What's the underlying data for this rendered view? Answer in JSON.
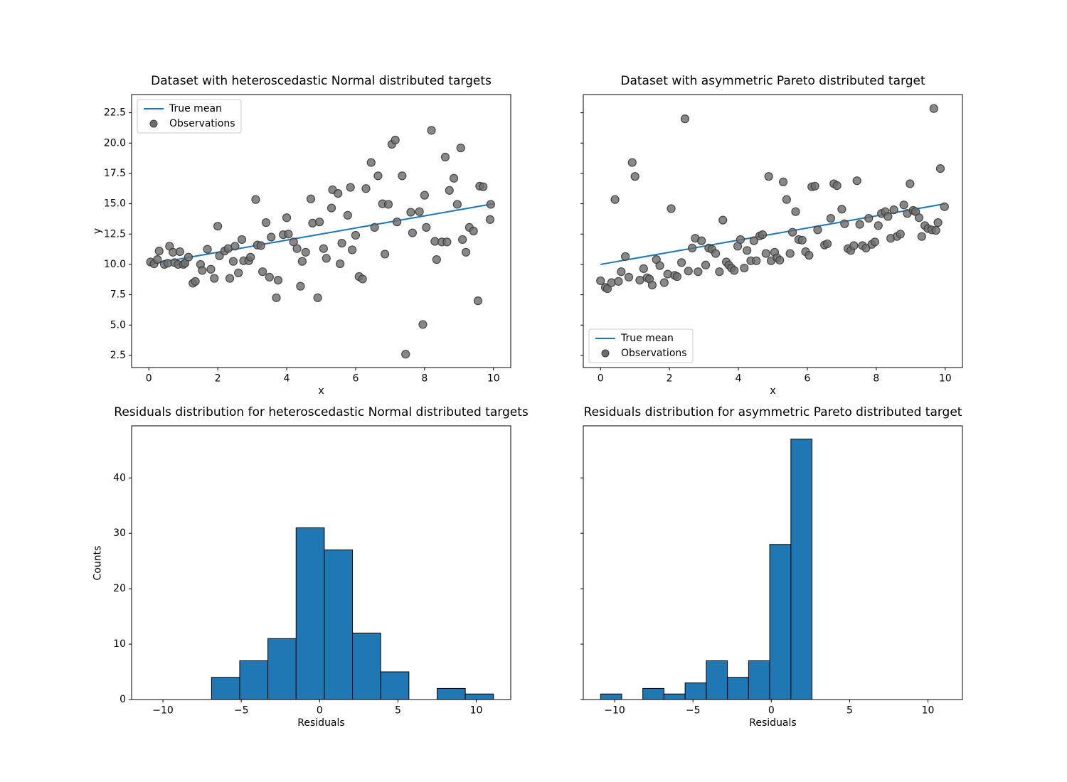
{
  "figure": {
    "background": "#ffffff"
  },
  "colors": {
    "line": "#1f77b4",
    "hist_fill": "#1f77b4",
    "hist_edge": "#000000",
    "marker_fill": "#6e6e6e",
    "marker_edge": "#3a3a3a",
    "axes_edge": "#000000",
    "legend_border": "#cccccc",
    "legend_bg": "#ffffff"
  },
  "chart_data": [
    {
      "type": "scatter",
      "title": "Dataset with heteroscedastic Normal distributed targets",
      "xlabel": "x",
      "ylabel": "y",
      "xlim": [
        -0.5,
        10.5
      ],
      "ylim": [
        1.5,
        24.0
      ],
      "xticks": [
        0,
        2,
        4,
        6,
        8,
        10
      ],
      "xtick_labels": [
        "0",
        "2",
        "4",
        "6",
        "8",
        "10"
      ],
      "yticks": [
        2.5,
        5.0,
        7.5,
        10.0,
        12.5,
        15.0,
        17.5,
        20.0,
        22.5
      ],
      "ytick_labels": [
        "2.5",
        "5.0",
        "7.5",
        "10.0",
        "12.5",
        "15.0",
        "17.5",
        "20.0",
        "22.5"
      ],
      "show_ytick_labels": true,
      "line": {
        "label": "True mean",
        "x": [
          0,
          10
        ],
        "y": [
          10,
          15
        ]
      },
      "legend": {
        "position": "upper-left",
        "items": [
          "True mean",
          "Observations"
        ]
      },
      "points": [
        [
          0.05,
          10.2
        ],
        [
          0.15,
          10.05
        ],
        [
          0.25,
          10.4
        ],
        [
          0.3,
          11.1
        ],
        [
          0.45,
          10.0
        ],
        [
          0.55,
          10.1
        ],
        [
          0.6,
          11.5
        ],
        [
          0.7,
          11.0
        ],
        [
          0.75,
          10.15
        ],
        [
          0.85,
          10.0
        ],
        [
          0.9,
          11.05
        ],
        [
          1.0,
          10.0
        ],
        [
          1.05,
          10.1
        ],
        [
          1.15,
          10.6
        ],
        [
          1.28,
          8.45
        ],
        [
          1.35,
          8.6
        ],
        [
          1.5,
          10.0
        ],
        [
          1.55,
          9.5
        ],
        [
          1.7,
          11.25
        ],
        [
          1.8,
          9.6
        ],
        [
          1.9,
          8.85
        ],
        [
          2.0,
          13.15
        ],
        [
          2.05,
          10.7
        ],
        [
          2.2,
          11.1
        ],
        [
          2.3,
          11.3
        ],
        [
          2.35,
          8.85
        ],
        [
          2.45,
          10.25
        ],
        [
          2.5,
          11.5
        ],
        [
          2.6,
          9.3
        ],
        [
          2.7,
          12.05
        ],
        [
          2.75,
          10.3
        ],
        [
          2.9,
          10.3
        ],
        [
          2.95,
          10.6
        ],
        [
          3.1,
          15.35
        ],
        [
          3.15,
          11.6
        ],
        [
          3.25,
          11.55
        ],
        [
          3.3,
          9.4
        ],
        [
          3.4,
          13.45
        ],
        [
          3.5,
          8.95
        ],
        [
          3.55,
          12.25
        ],
        [
          3.7,
          7.25
        ],
        [
          3.75,
          8.7
        ],
        [
          3.9,
          12.45
        ],
        [
          4.0,
          13.85
        ],
        [
          4.05,
          12.5
        ],
        [
          4.2,
          11.85
        ],
        [
          4.3,
          11.3
        ],
        [
          4.4,
          8.2
        ],
        [
          4.45,
          10.25
        ],
        [
          4.55,
          11.0
        ],
        [
          4.7,
          15.4
        ],
        [
          4.75,
          13.4
        ],
        [
          4.9,
          7.25
        ],
        [
          4.95,
          13.5
        ],
        [
          5.07,
          11.3
        ],
        [
          5.15,
          10.5
        ],
        [
          5.3,
          14.65
        ],
        [
          5.33,
          16.15
        ],
        [
          5.49,
          15.85
        ],
        [
          5.55,
          10.05
        ],
        [
          5.6,
          11.75
        ],
        [
          5.77,
          14.05
        ],
        [
          5.85,
          16.35
        ],
        [
          5.9,
          11.2
        ],
        [
          6.0,
          12.4
        ],
        [
          6.1,
          9.0
        ],
        [
          6.2,
          8.8
        ],
        [
          6.3,
          16.25
        ],
        [
          6.45,
          18.4
        ],
        [
          6.55,
          13.05
        ],
        [
          6.65,
          17.3
        ],
        [
          6.78,
          15.0
        ],
        [
          6.85,
          10.85
        ],
        [
          6.95,
          14.95
        ],
        [
          7.05,
          19.9
        ],
        [
          7.15,
          20.25
        ],
        [
          7.2,
          13.5
        ],
        [
          7.35,
          17.3
        ],
        [
          7.45,
          2.6
        ],
        [
          7.6,
          14.3
        ],
        [
          7.65,
          12.6
        ],
        [
          7.85,
          14.35
        ],
        [
          7.95,
          5.05
        ],
        [
          8.0,
          15.7
        ],
        [
          8.05,
          13.05
        ],
        [
          8.2,
          21.05
        ],
        [
          8.3,
          11.9
        ],
        [
          8.35,
          10.4
        ],
        [
          8.5,
          11.85
        ],
        [
          8.6,
          18.85
        ],
        [
          8.65,
          11.85
        ],
        [
          8.72,
          16.1
        ],
        [
          8.85,
          17.1
        ],
        [
          8.95,
          14.95
        ],
        [
          9.05,
          19.6
        ],
        [
          9.1,
          12.05
        ],
        [
          9.2,
          11.0
        ],
        [
          9.3,
          13.05
        ],
        [
          9.42,
          12.75
        ],
        [
          9.55,
          7.0
        ],
        [
          9.6,
          16.45
        ],
        [
          9.7,
          16.4
        ],
        [
          9.9,
          13.7
        ],
        [
          9.92,
          14.95
        ]
      ]
    },
    {
      "type": "scatter",
      "title": "Dataset with asymmetric Pareto distributed target",
      "xlabel": "x",
      "ylabel": "",
      "xlim": [
        -0.5,
        10.5
      ],
      "ylim": [
        1.5,
        24.0
      ],
      "xticks": [
        0,
        2,
        4,
        6,
        8,
        10
      ],
      "xtick_labels": [
        "0",
        "2",
        "4",
        "6",
        "8",
        "10"
      ],
      "yticks": [
        2.5,
        5.0,
        7.5,
        10.0,
        12.5,
        15.0,
        17.5,
        20.0,
        22.5
      ],
      "ytick_labels": [
        "2.5",
        "5.0",
        "7.5",
        "10.0",
        "12.5",
        "15.0",
        "17.5",
        "20.0",
        "22.5"
      ],
      "show_ytick_labels": false,
      "line": {
        "label": "True mean",
        "x": [
          0,
          10
        ],
        "y": [
          10,
          15
        ]
      },
      "legend": {
        "position": "lower-left",
        "items": [
          "True mean",
          "Observations"
        ]
      },
      "points": [
        [
          0.0,
          8.65
        ],
        [
          0.14,
          8.1
        ],
        [
          0.2,
          8.0
        ],
        [
          0.32,
          8.5
        ],
        [
          0.42,
          15.35
        ],
        [
          0.52,
          8.6
        ],
        [
          0.6,
          9.4
        ],
        [
          0.72,
          10.65
        ],
        [
          0.82,
          8.95
        ],
        [
          0.92,
          18.4
        ],
        [
          1.0,
          17.25
        ],
        [
          1.14,
          8.7
        ],
        [
          1.25,
          9.65
        ],
        [
          1.35,
          8.9
        ],
        [
          1.42,
          8.8
        ],
        [
          1.5,
          8.3
        ],
        [
          1.62,
          10.4
        ],
        [
          1.72,
          9.9
        ],
        [
          1.85,
          8.5
        ],
        [
          1.95,
          9.2
        ],
        [
          2.05,
          14.6
        ],
        [
          2.15,
          9.1
        ],
        [
          2.22,
          9.0
        ],
        [
          2.35,
          10.15
        ],
        [
          2.45,
          22.0
        ],
        [
          2.55,
          9.45
        ],
        [
          2.66,
          11.35
        ],
        [
          2.75,
          12.15
        ],
        [
          2.83,
          9.4
        ],
        [
          2.93,
          11.95
        ],
        [
          3.05,
          9.95
        ],
        [
          3.14,
          11.35
        ],
        [
          3.23,
          11.25
        ],
        [
          3.34,
          10.9
        ],
        [
          3.45,
          9.4
        ],
        [
          3.55,
          13.65
        ],
        [
          3.65,
          10.2
        ],
        [
          3.72,
          9.95
        ],
        [
          3.8,
          9.7
        ],
        [
          3.88,
          9.5
        ],
        [
          3.98,
          11.5
        ],
        [
          4.06,
          12.05
        ],
        [
          4.17,
          9.7
        ],
        [
          4.25,
          11.15
        ],
        [
          4.36,
          10.3
        ],
        [
          4.45,
          11.95
        ],
        [
          4.52,
          10.3
        ],
        [
          4.62,
          12.35
        ],
        [
          4.7,
          12.45
        ],
        [
          4.8,
          10.9
        ],
        [
          4.88,
          17.25
        ],
        [
          4.95,
          10.3
        ],
        [
          5.05,
          11.0
        ],
        [
          5.12,
          10.55
        ],
        [
          5.2,
          10.35
        ],
        [
          5.3,
          16.8
        ],
        [
          5.4,
          15.35
        ],
        [
          5.5,
          10.9
        ],
        [
          5.57,
          12.65
        ],
        [
          5.66,
          14.35
        ],
        [
          5.75,
          12.05
        ],
        [
          5.85,
          12.0
        ],
        [
          5.95,
          11.05
        ],
        [
          6.05,
          10.75
        ],
        [
          6.13,
          16.4
        ],
        [
          6.22,
          16.45
        ],
        [
          6.3,
          12.85
        ],
        [
          6.5,
          11.6
        ],
        [
          6.58,
          11.7
        ],
        [
          6.68,
          13.8
        ],
        [
          6.77,
          16.65
        ],
        [
          6.86,
          16.5
        ],
        [
          7.0,
          14.55
        ],
        [
          7.08,
          13.35
        ],
        [
          7.18,
          11.3
        ],
        [
          7.26,
          11.15
        ],
        [
          7.35,
          11.55
        ],
        [
          7.44,
          16.9
        ],
        [
          7.52,
          13.3
        ],
        [
          7.6,
          11.55
        ],
        [
          7.7,
          11.35
        ],
        [
          7.78,
          13.8
        ],
        [
          7.87,
          11.65
        ],
        [
          7.96,
          11.85
        ],
        [
          8.06,
          13.2
        ],
        [
          8.15,
          14.2
        ],
        [
          8.26,
          14.35
        ],
        [
          8.34,
          13.95
        ],
        [
          8.42,
          12.15
        ],
        [
          8.51,
          14.5
        ],
        [
          8.6,
          12.3
        ],
        [
          8.7,
          12.5
        ],
        [
          8.8,
          14.9
        ],
        [
          8.9,
          14.2
        ],
        [
          8.98,
          16.65
        ],
        [
          9.07,
          14.45
        ],
        [
          9.14,
          14.35
        ],
        [
          9.24,
          13.85
        ],
        [
          9.32,
          12.3
        ],
        [
          9.41,
          13.2
        ],
        [
          9.5,
          12.95
        ],
        [
          9.61,
          12.85
        ],
        [
          9.67,
          22.85
        ],
        [
          9.73,
          12.8
        ],
        [
          9.79,
          13.45
        ],
        [
          9.86,
          17.9
        ],
        [
          9.98,
          14.75
        ]
      ]
    },
    {
      "type": "histogram",
      "title": "Residuals distribution for heteroscedastic Normal distributed targets",
      "xlabel": "Residuals",
      "ylabel": "Counts",
      "xlim": [
        -12.0,
        12.2
      ],
      "ylim": [
        0,
        49.4
      ],
      "xticks": [
        -10,
        -5,
        0,
        5,
        10
      ],
      "xtick_labels": [
        "−10",
        "−5",
        "0",
        "5",
        "10"
      ],
      "yticks": [
        0,
        10,
        20,
        30,
        40
      ],
      "ytick_labels": [
        "0",
        "10",
        "20",
        "30",
        "40"
      ],
      "show_ytick_labels": true,
      "bin_edges": [
        -6.9,
        -5.1,
        -3.3,
        -1.5,
        0.3,
        2.1,
        3.9,
        5.7,
        7.5,
        9.3,
        11.1
      ],
      "counts": [
        4,
        7,
        11,
        31,
        27,
        12,
        5,
        0,
        2,
        1
      ]
    },
    {
      "type": "histogram",
      "title": "Residuals distribution for asymmetric Pareto distributed target",
      "xlabel": "Residuals",
      "ylabel": "",
      "xlim": [
        -12.0,
        12.2
      ],
      "ylim": [
        0,
        49.4
      ],
      "xticks": [
        -10,
        -5,
        0,
        5,
        10
      ],
      "xtick_labels": [
        "−10",
        "−5",
        "0",
        "5",
        "10"
      ],
      "yticks": [
        0,
        10,
        20,
        30,
        40
      ],
      "ytick_labels": [
        "0",
        "10",
        "20",
        "30",
        "40"
      ],
      "show_ytick_labels": false,
      "bin_edges": [
        -10.9,
        -9.55,
        -8.2,
        -6.85,
        -5.5,
        -4.15,
        -2.8,
        -1.45,
        -0.1,
        1.25,
        2.6
      ],
      "counts": [
        1,
        0,
        2,
        1,
        3,
        7,
        4,
        7,
        28,
        47
      ]
    }
  ]
}
